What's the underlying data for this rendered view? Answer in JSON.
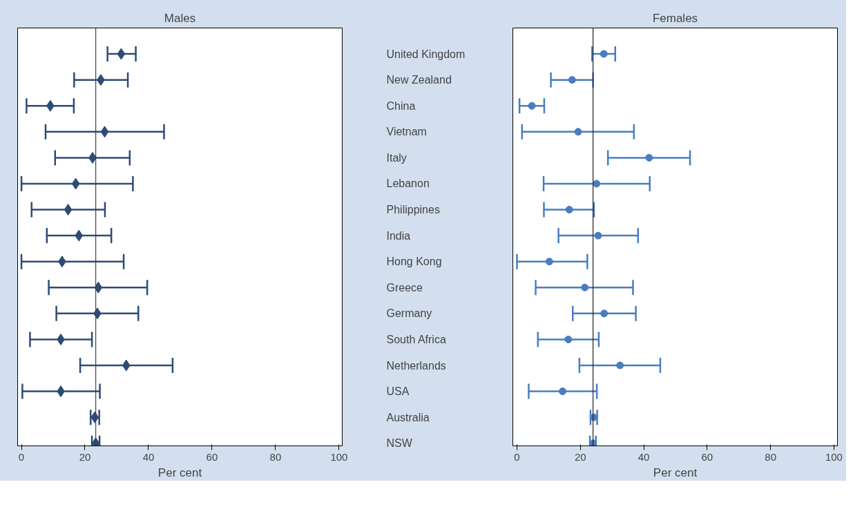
{
  "chart_data": [
    {
      "type": "scatter",
      "orientation": "horizontal",
      "title": "Males",
      "xlabel": "Per cent",
      "marker": "diamond",
      "grid": false,
      "categories": [
        "United Kingdom",
        "New Zealand",
        "China",
        "Vietnam",
        "Italy",
        "Lebanon",
        "Philippines",
        "India",
        "Hong Kong",
        "Greece",
        "Germany",
        "South Africa",
        "Netherlands",
        "USA",
        "Australia",
        "NSW"
      ],
      "series": [
        {
          "color": "#2d4b74",
          "values": [
            31.4,
            25.0,
            9.1,
            26.2,
            22.4,
            17.1,
            14.7,
            18.1,
            12.8,
            24.2,
            23.9,
            12.4,
            33.0,
            12.4,
            23.1,
            23.4
          ],
          "errors": [
            [
              27.1,
              36.0
            ],
            [
              16.6,
              33.5
            ],
            [
              1.6,
              16.5
            ],
            [
              7.6,
              44.9
            ],
            [
              10.6,
              34.1
            ],
            [
              0,
              35.1
            ],
            [
              3.2,
              26.3
            ],
            [
              8.0,
              28.3
            ],
            [
              0,
              32.2
            ],
            [
              8.6,
              39.6
            ],
            [
              11.0,
              36.8
            ],
            [
              2.7,
              22.2
            ],
            [
              18.5,
              47.6
            ],
            [
              0.3,
              24.7
            ],
            [
              21.8,
              24.5
            ],
            [
              22.2,
              24.6
            ]
          ]
        }
      ],
      "xlim": [
        -1.2,
        101
      ],
      "xticks": [
        0,
        20,
        40,
        60,
        80,
        100
      ],
      "ref_lines": [
        {
          "axis": "x",
          "value": 23.4,
          "color": "#404040"
        }
      ]
    },
    {
      "type": "scatter",
      "orientation": "horizontal",
      "title": "Females",
      "xlabel": "Per cent",
      "marker": "circle",
      "grid": false,
      "categories": [
        null,
        null,
        null,
        null,
        null,
        null,
        null,
        null,
        null,
        null,
        null,
        null,
        null,
        null,
        null,
        null
      ],
      "series": [
        {
          "color": "#4a7cc2",
          "values": [
            27.4,
            17.4,
            4.7,
            19.3,
            41.7,
            25.1,
            16.5,
            25.6,
            10.2,
            21.4,
            27.5,
            16.2,
            32.5,
            14.4,
            24.2,
            24.0
          ],
          "errors": [
            [
              23.7,
              31.0
            ],
            [
              10.7,
              24.0
            ],
            [
              0.8,
              8.6
            ],
            [
              1.6,
              36.9
            ],
            [
              28.7,
              54.6
            ],
            [
              8.4,
              41.9
            ],
            [
              8.5,
              24.3
            ],
            [
              13.1,
              38.2
            ],
            [
              0,
              22.2
            ],
            [
              5.9,
              36.6
            ],
            [
              17.6,
              37.5
            ],
            [
              6.6,
              25.8
            ],
            [
              19.7,
              45.2
            ],
            [
              3.7,
              25.2
            ],
            [
              23.2,
              25.3
            ],
            [
              23.0,
              24.9
            ]
          ]
        }
      ],
      "xlim": [
        -1.3,
        101.1
      ],
      "xticks": [
        0,
        20,
        40,
        60,
        80,
        100
      ],
      "ref_lines": [
        {
          "axis": "x",
          "value": 24.0,
          "color": "#202020"
        }
      ]
    }
  ]
}
